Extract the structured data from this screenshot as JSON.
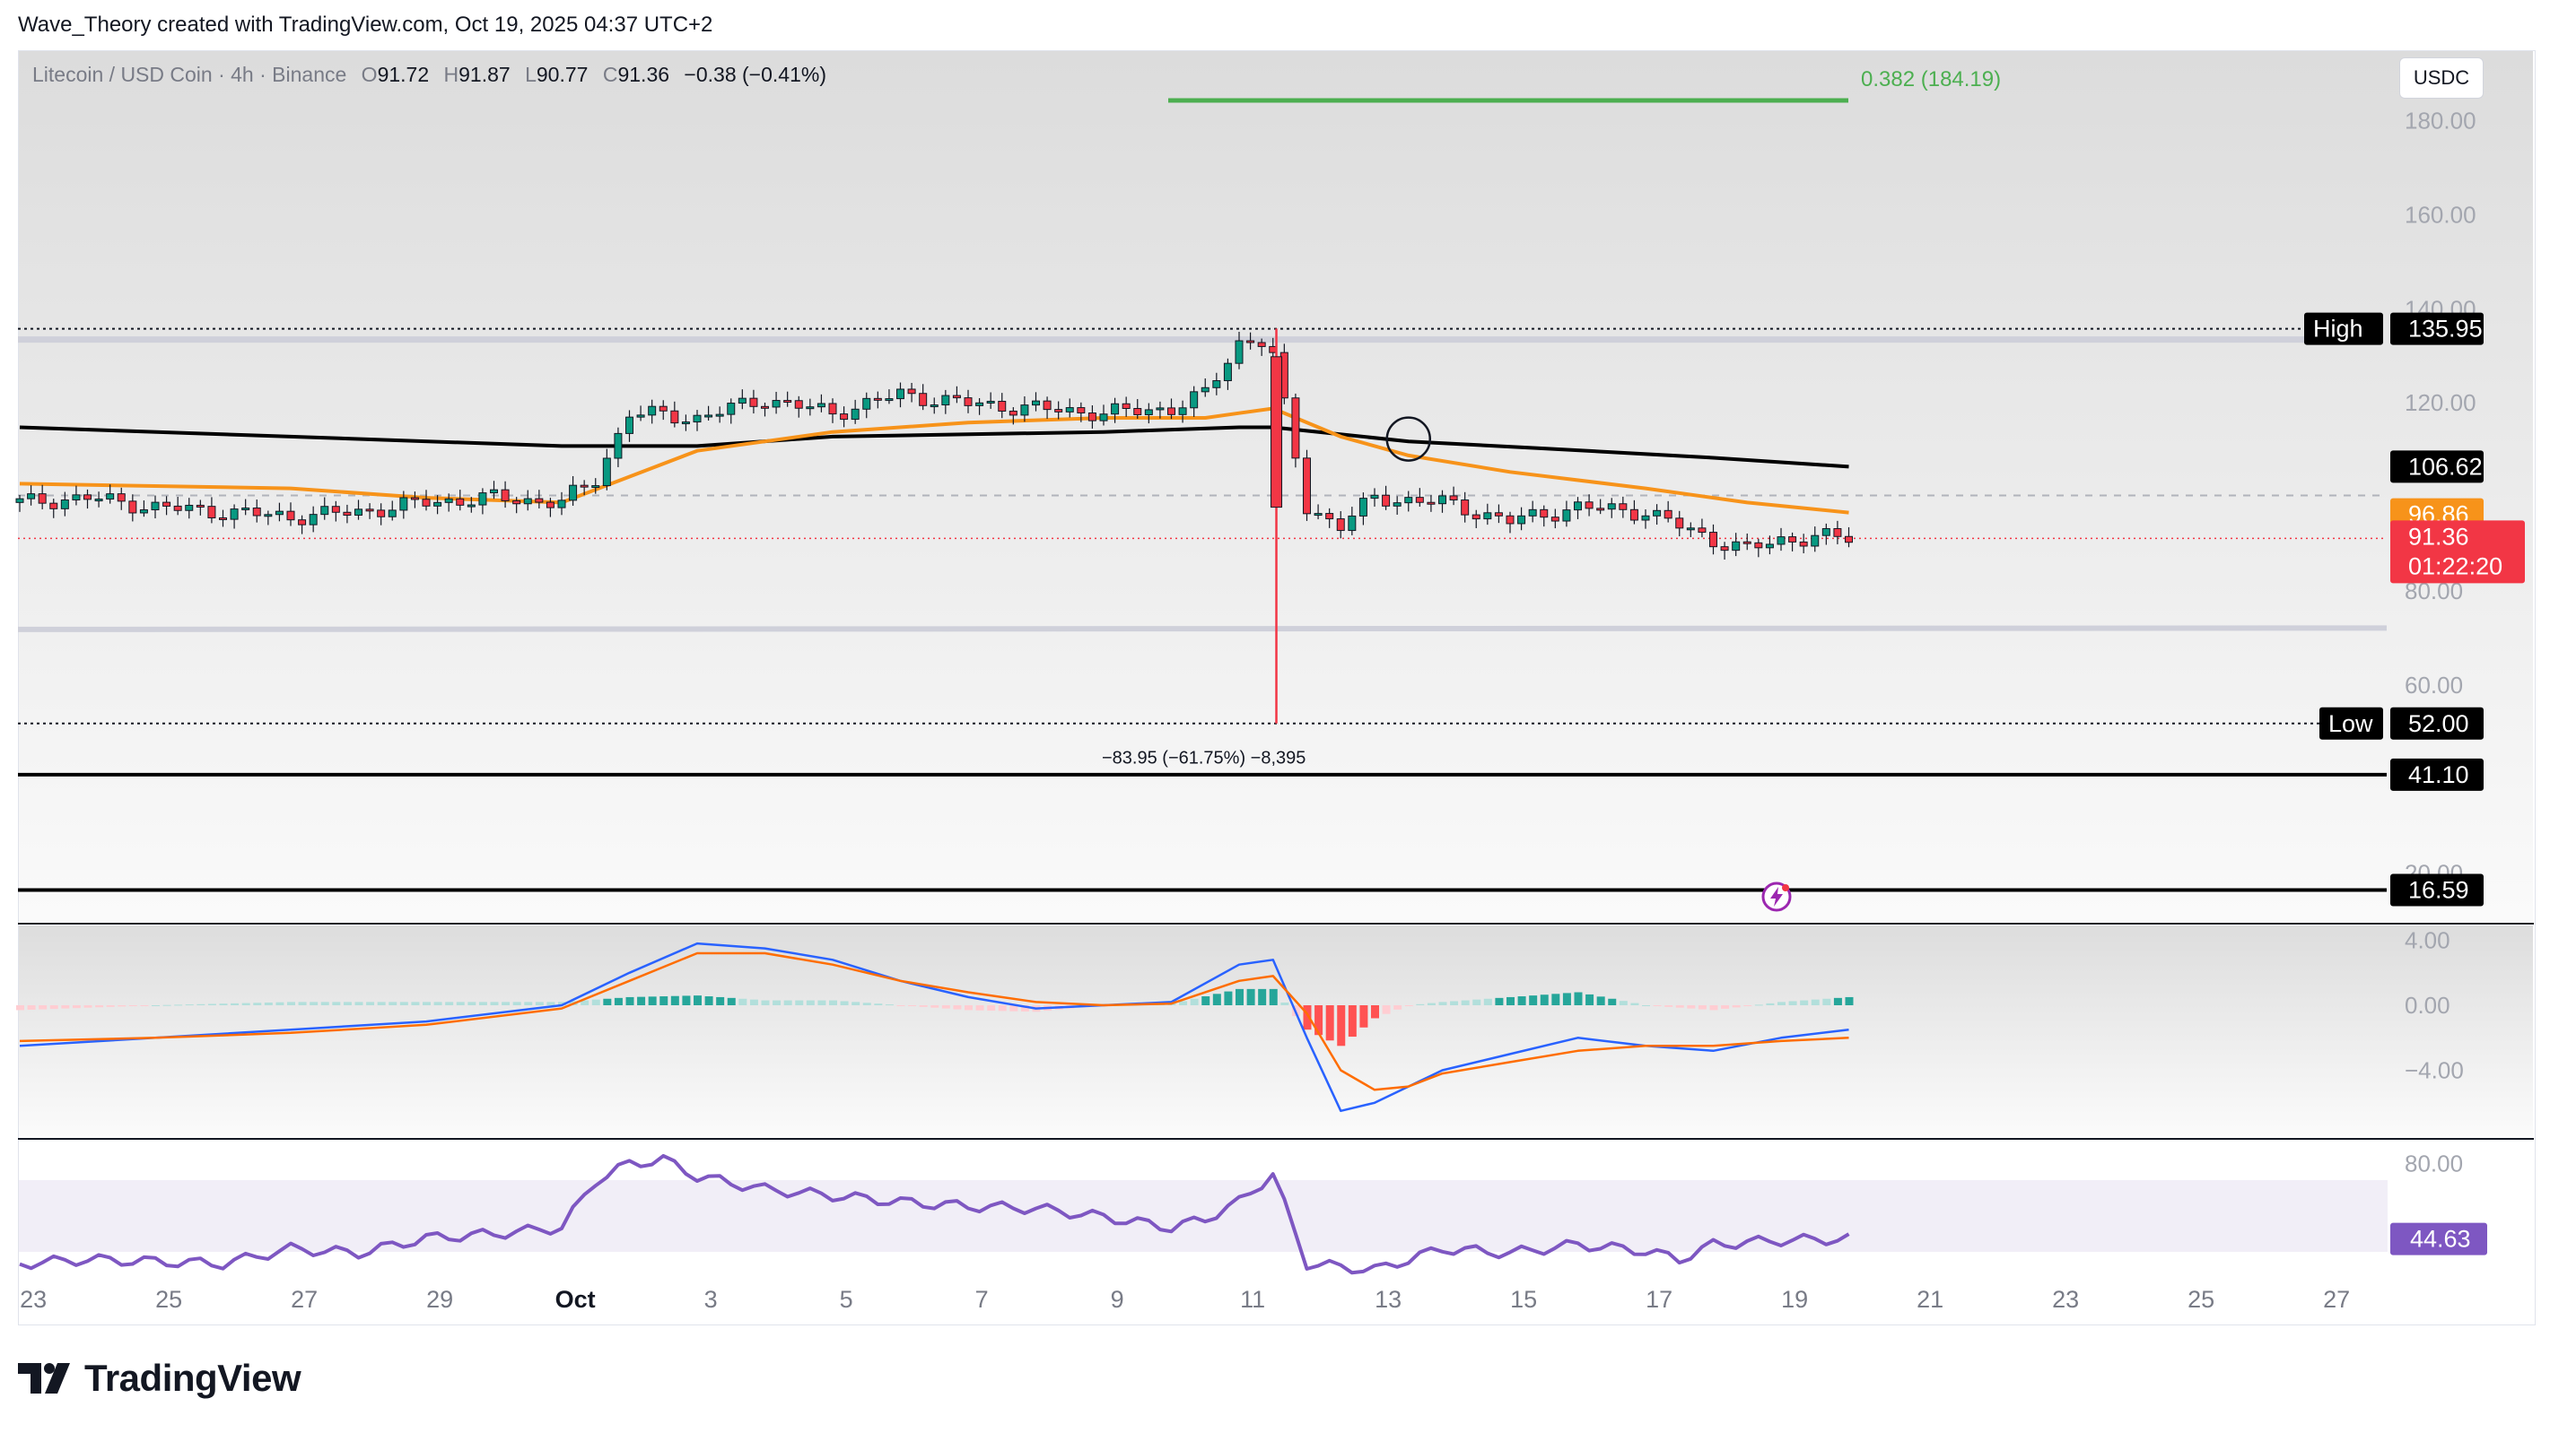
{
  "header": {
    "title": "Wave_Theory created with TradingView.com, Oct 19, 2025 04:37 UTC+2"
  },
  "legend": {
    "symbol": "Litecoin / USD Coin · 4h · Binance",
    "o_label": "O",
    "o_value": "91.72",
    "h_label": "H",
    "h_value": "91.87",
    "l_label": "L",
    "l_value": "90.77",
    "c_label": "C",
    "c_value": "91.36",
    "change": "−0.38 (−0.41%)"
  },
  "currency": "USDC",
  "branding": "TradingView",
  "colors": {
    "bull": "#089981",
    "bear": "#f23645",
    "ema_fast": "#f7931a",
    "ema_slow": "#000000",
    "fib": "#4caf50",
    "macd": "#2962ff",
    "signal": "#ff6d00",
    "rsi": "#7e57c2"
  },
  "chart_data": [
    {
      "type": "candlestick",
      "title": "Litecoin / USD Coin · 4h · Binance",
      "x_ticks": [
        "23",
        "25",
        "27",
        "29",
        "Oct",
        "3",
        "5",
        "7",
        "9",
        "11",
        "13",
        "15",
        "17",
        "19",
        "21",
        "23",
        "25",
        "27"
      ],
      "y_ticks": [
        "180.00",
        "160.00",
        "140.00",
        "120.00",
        "80.00",
        "60.00",
        "20.00"
      ],
      "ylim": [
        10,
        195
      ],
      "x_start_day": 22.0,
      "close_series": {
        "x": [
          22.0,
          23.0,
          24.0,
          25.0,
          26.0,
          27.0,
          28.0,
          29.0,
          30.0,
          30.5,
          31.0,
          32.0,
          33.0,
          34.0,
          35.0,
          36.0,
          37.0,
          38.0,
          39.0,
          39.5,
          40.0,
          40.3,
          40.5,
          41.0,
          41.5,
          42.0,
          43.0,
          44.0,
          45.0,
          46.0,
          46.5,
          47.0,
          47.5,
          48.0,
          48.5,
          49.0
        ],
        "y": [
          99,
          100,
          98,
          97,
          96,
          97,
          99,
          100,
          99,
          104,
          118,
          117,
          121,
          118,
          122,
          120,
          119,
          118,
          119,
          122,
          133,
          134,
          130,
          98,
          94,
          100,
          99,
          95,
          98,
          97,
          94,
          91,
          89,
          91,
          91.7,
          91.36
        ]
      },
      "ema_fast": {
        "x": [
          22.0,
          26.0,
          28.0,
          30.0,
          32.0,
          34.0,
          36.0,
          38.0,
          39.5,
          40.0,
          40.5,
          41.5,
          42.5,
          44.0,
          46.0,
          47.5,
          49.0
        ],
        "y": [
          103,
          102,
          100,
          99,
          110,
          114,
          116,
          117,
          117,
          118,
          119,
          113,
          109,
          105.5,
          102,
          99,
          96.86
        ]
      },
      "ema_slow": {
        "x": [
          22.0,
          26.0,
          30.0,
          32.0,
          34.0,
          38.0,
          40.0,
          40.5,
          42.5,
          44.5,
          47.0,
          49.0
        ],
        "y": [
          115,
          113,
          111,
          111,
          113,
          114,
          115,
          115,
          112,
          110.5,
          108.5,
          106.62
        ]
      },
      "levels": [
        {
          "label": "High",
          "value": "135.95",
          "y": 135.95
        },
        {
          "label": "",
          "value": "106.62",
          "y": 106.62
        },
        {
          "label": "",
          "value": "96.86",
          "y": 96.86
        },
        {
          "label": "",
          "value": "91.36",
          "y": 91.36,
          "countdown": "01:22:20"
        },
        {
          "label": "Low",
          "value": "52.00",
          "y": 52.0
        },
        {
          "label": "",
          "value": "41.10",
          "y": 41.1
        },
        {
          "label": "",
          "value": "16.59",
          "y": 16.59
        }
      ],
      "fib_label": "0.382 (184.19)",
      "fib_level": 184.19,
      "measure_label": "−83.95 (−61.75%) −8,395",
      "wick_low": 52.0,
      "wick_high": 136.0
    },
    {
      "type": "macd",
      "y_ticks": [
        "4.00",
        "0.00",
        "−4.00"
      ],
      "ylim": [
        -8,
        4.8
      ],
      "x": [
        22,
        24,
        26,
        28,
        30,
        31,
        32,
        33,
        34,
        35,
        36,
        37,
        38,
        39,
        40,
        40.5,
        41,
        41.5,
        42,
        42.5,
        43,
        44,
        45,
        46,
        47,
        48,
        49
      ],
      "macd": [
        -2.5,
        -2,
        -1.5,
        -1,
        0,
        2,
        3.8,
        3.5,
        2.8,
        1.5,
        0.5,
        -0.2,
        0,
        0.2,
        2.5,
        2.8,
        -2,
        -6.5,
        -6,
        -5,
        -4,
        -3,
        -2,
        -2.5,
        -2.8,
        -2,
        -1.5
      ],
      "signal": [
        -2.2,
        -2,
        -1.7,
        -1.2,
        -0.2,
        1.5,
        3.2,
        3.2,
        2.5,
        1.5,
        0.8,
        0.2,
        0,
        0.1,
        1.5,
        1.8,
        -0.5,
        -4,
        -5.2,
        -5,
        -4.2,
        -3.5,
        -2.8,
        -2.5,
        -2.5,
        -2.2,
        -2.0
      ]
    },
    {
      "type": "rsi",
      "y_ticks": [
        "80.00"
      ],
      "value_label": "44.63",
      "ylim": [
        20,
        90
      ],
      "x": [
        22,
        23,
        24,
        25,
        26,
        27,
        28,
        29,
        30,
        30.5,
        31,
        31.5,
        32,
        33,
        34,
        35,
        36,
        37,
        38,
        39,
        39.5,
        40,
        40.3,
        40.5,
        41,
        42,
        43,
        44,
        45,
        46,
        46.5,
        47,
        48,
        49
      ],
      "y": [
        33,
        35,
        34,
        33,
        40,
        38,
        45,
        47,
        50,
        72,
        80,
        82,
        74,
        68,
        65,
        62,
        60,
        59,
        55,
        50,
        54,
        62,
        70,
        75,
        33,
        30,
        40,
        38,
        42,
        39,
        35,
        42,
        44,
        44.63
      ]
    }
  ]
}
